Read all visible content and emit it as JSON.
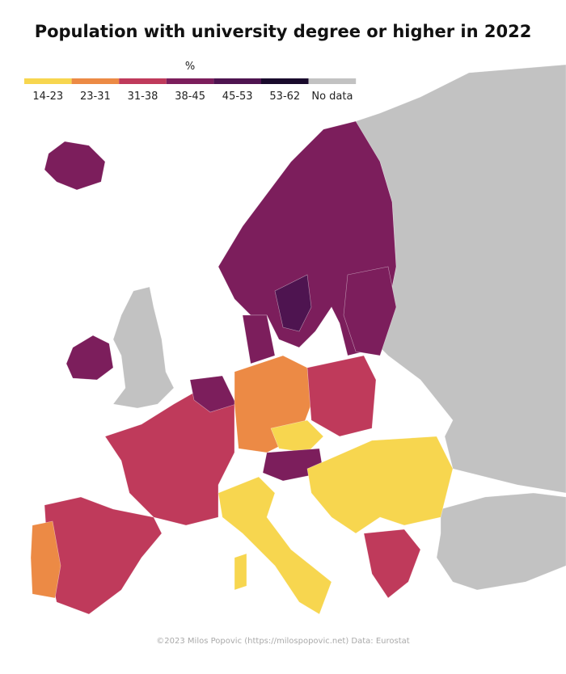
{
  "title": "Population with university degree or higher in 2022",
  "legend": {
    "title": "%",
    "items": [
      {
        "label": "14-23",
        "color": "#f7d64f"
      },
      {
        "label": "23-31",
        "color": "#ec8a45"
      },
      {
        "label": "31-38",
        "color": "#bf3a5b"
      },
      {
        "label": "38-45",
        "color": "#7c1e5c"
      },
      {
        "label": "45-53",
        "color": "#4e1450"
      },
      {
        "label": "53-62",
        "color": "#190a2c"
      },
      {
        "label": "No data",
        "color": "#c2c2c2"
      }
    ]
  },
  "caption": "©2023 Milos Popovic (https://milospopovic.net) Data: Eurostat"
}
